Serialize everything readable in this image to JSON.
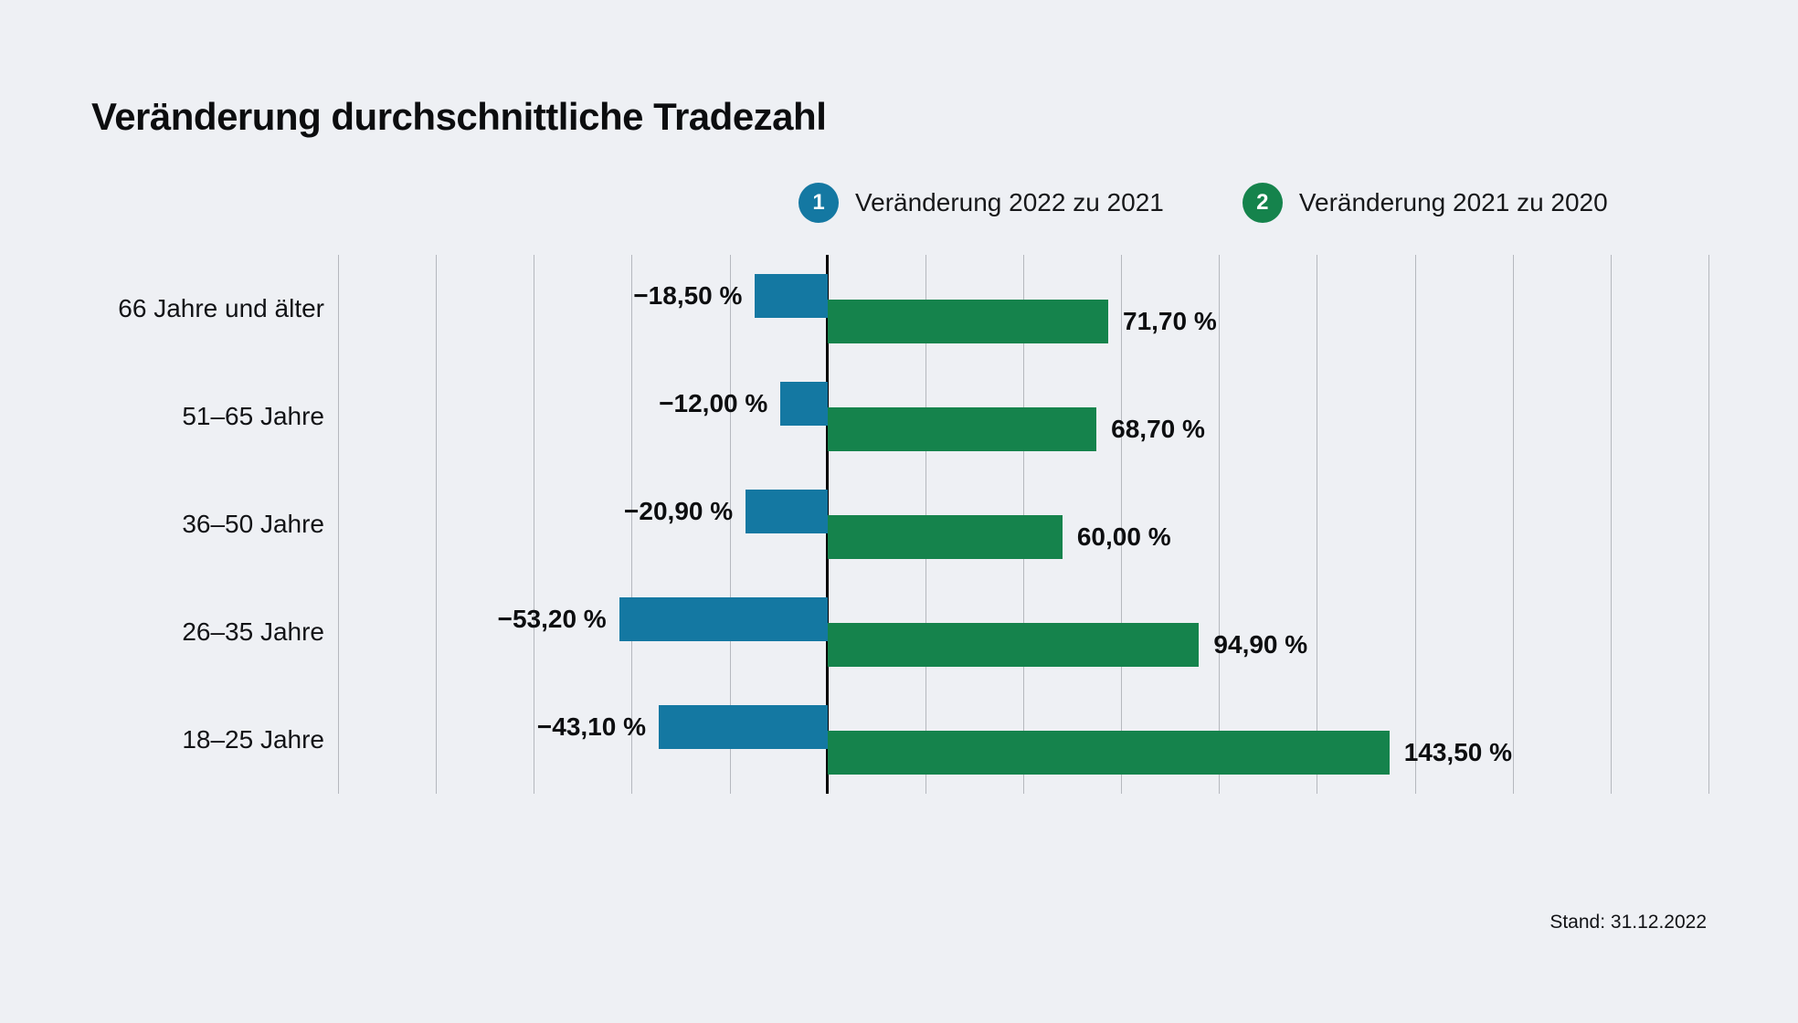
{
  "page": {
    "title": "Veränderung durchschnittliche Tradezahl",
    "stand": "Stand: 31.12.2022",
    "background": "#eef0f4"
  },
  "colors": {
    "series1": "#1478a2",
    "series2": "#15834c",
    "gridline": "#b5b8be",
    "zero_line": "#000000",
    "text": "#121316"
  },
  "legend": [
    {
      "id": "1",
      "label": "Veränderung 2022 zu 2021",
      "color": "#1478a2"
    },
    {
      "id": "2",
      "label": "Veränderung 2021 zu 2020",
      "color": "#15834c"
    }
  ],
  "chart_data": {
    "type": "bar",
    "orientation": "horizontal",
    "title": "Veränderung durchschnittliche Tradezahl",
    "categories": [
      "66 Jahre und älter",
      "51–65 Jahre",
      "36–50 Jahre",
      "26–35 Jahre",
      "18–25 Jahre"
    ],
    "series": [
      {
        "name": "Veränderung 2022 zu 2021",
        "color": "#1478a2",
        "values": [
          -18.5,
          -12.0,
          -20.9,
          -53.2,
          -43.1
        ],
        "labels": [
          "−18,50 %",
          "−12,00 %",
          "−20,90 %",
          "−53,20 %",
          "−43,10 %"
        ]
      },
      {
        "name": "Veränderung 2021 zu 2020",
        "color": "#15834c",
        "values": [
          71.7,
          68.7,
          60.0,
          94.9,
          143.5
        ],
        "labels": [
          "71,70 %",
          "68,70 %",
          "60,00 %",
          "94,90 %",
          "143,50 %"
        ]
      }
    ],
    "x_axis": {
      "min": -125,
      "max": 225,
      "gridline_step": 25,
      "zero_line": true
    },
    "grid": true,
    "legend_position": "top",
    "unit": "%"
  }
}
